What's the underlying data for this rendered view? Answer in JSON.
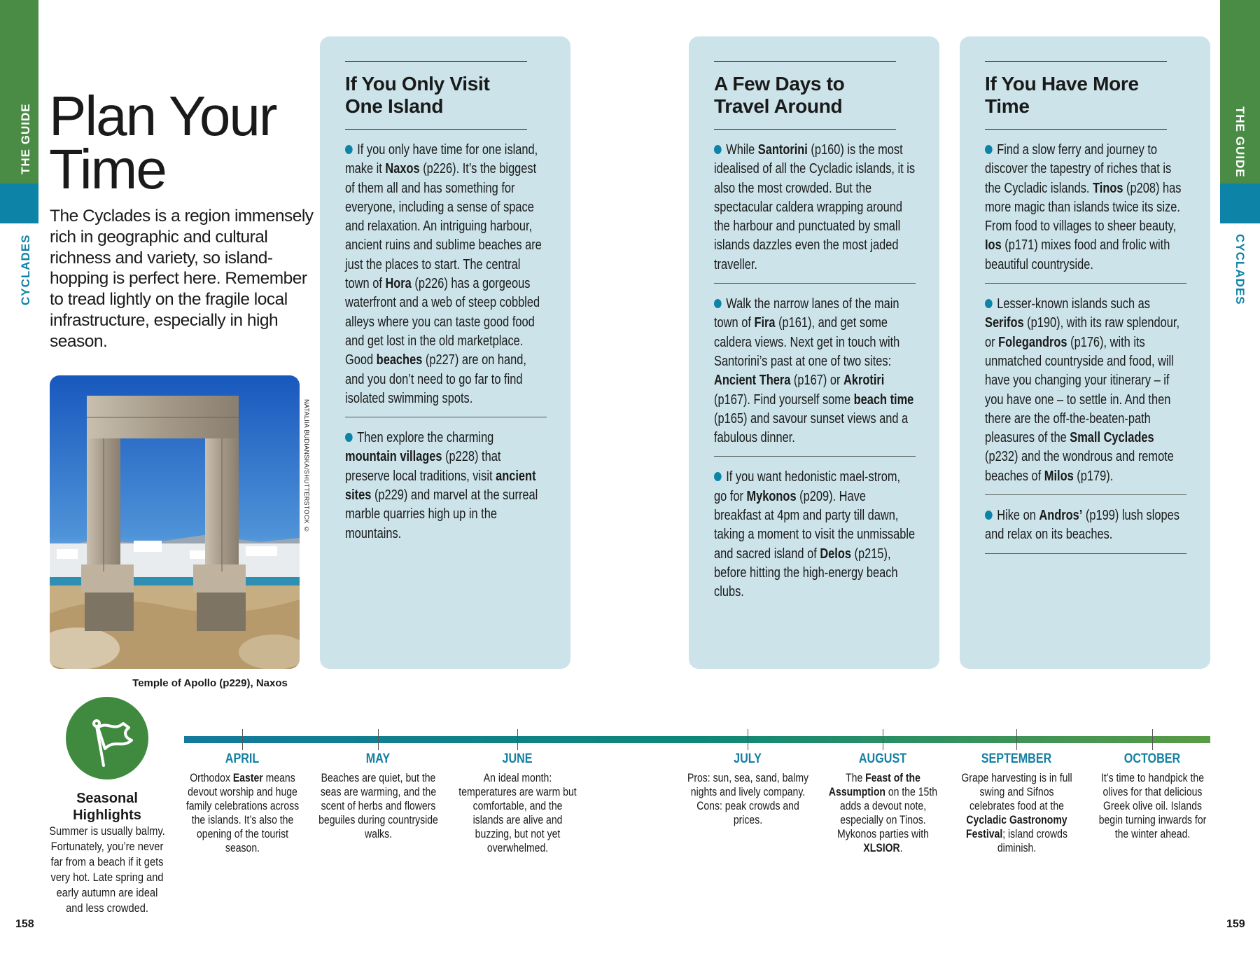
{
  "side_tabs": {
    "section": "THE GUIDE",
    "region": "CYCLADES"
  },
  "colors": {
    "green": "#4a8c45",
    "blue": "#0e83a8",
    "box_bg": "#cce3ea",
    "month": "#147fa2"
  },
  "title": "Plan Your Time",
  "intro": "The Cyclades is a region immensely rich in geographic and cultural richness and variety, so island-hopping is perfect here. Remember to tread lightly on the fragile local infrastructure, especially in high season.",
  "photo": {
    "credit": "NATALIIA BUDIANSKA/SHUTTERSTOCK ©",
    "caption": "Temple of Apollo (p229), Naxos"
  },
  "boxes": [
    {
      "heading": "If You Only Visit One Island",
      "paragraphs": [
        [
          {
            "t": "If you only have time for one island, make it "
          },
          {
            "t": "Naxos",
            "b": true
          },
          {
            "t": " (p226). It’s the biggest of them all and has something for everyone, including a sense of space and relaxation. An intriguing harbour, ancient ruins and sublime beaches are just the places to start. The central town of "
          },
          {
            "t": "Hora",
            "b": true
          },
          {
            "t": " (p226) has a gorgeous waterfront and a web of steep cobbled alleys where you can taste good food and get lost in the old marketplace. Good "
          },
          {
            "t": "beaches",
            "b": true
          },
          {
            "t": " (p227) are on hand, and you don’t need to go far to find isolated swimming spots."
          }
        ],
        [
          {
            "t": "Then explore the charming "
          },
          {
            "t": "mountain villages",
            "b": true
          },
          {
            "t": " (p228) that preserve local traditions, visit "
          },
          {
            "t": "ancient sites",
            "b": true
          },
          {
            "t": " (p229) and marvel at the surreal marble quarries high up in the mountains."
          }
        ]
      ]
    },
    {
      "heading": "A Few Days to Travel Around",
      "paragraphs": [
        [
          {
            "t": "While "
          },
          {
            "t": "Santorini",
            "b": true
          },
          {
            "t": " (p160) is the most idealised of all the Cycladic islands, it is also the most crowded. But the spectacular caldera wrapping around the harbour and punctuated by small islands dazzles even the most jaded traveller."
          }
        ],
        [
          {
            "t": "Walk the narrow lanes of the main town of "
          },
          {
            "t": "Fira",
            "b": true
          },
          {
            "t": " (p161), and get some caldera views. Next get in touch with Santorini’s past at one of two sites: "
          },
          {
            "t": "Ancient Thera",
            "b": true
          },
          {
            "t": " (p167) or "
          },
          {
            "t": "Akrotiri",
            "b": true
          },
          {
            "t": " (p167). Find yourself some "
          },
          {
            "t": "beach time",
            "b": true
          },
          {
            "t": " (p165) and savour sunset views and a fabulous dinner."
          }
        ],
        [
          {
            "t": "If you want hedonistic mael-strom, go for "
          },
          {
            "t": "Mykonos",
            "b": true
          },
          {
            "t": " (p209). Have breakfast at 4pm and party till dawn, taking a moment to visit the unmissable and sacred island of "
          },
          {
            "t": "Delos",
            "b": true
          },
          {
            "t": " (p215), before hitting the high-energy beach clubs."
          }
        ]
      ]
    },
    {
      "heading": "If You Have More Time",
      "paragraphs": [
        [
          {
            "t": "Find a slow ferry and journey to discover the tapestry of riches that is the Cycladic islands. "
          },
          {
            "t": "Tinos",
            "b": true
          },
          {
            "t": " (p208) has more magic than islands twice its size. From food to villages to sheer beauty, "
          },
          {
            "t": "Ios",
            "b": true
          },
          {
            "t": " (p171) mixes food and frolic with beautiful countryside."
          }
        ],
        [
          {
            "t": "Lesser-known islands such as "
          },
          {
            "t": "Serifos",
            "b": true
          },
          {
            "t": " (p190), with its raw splendour, or "
          },
          {
            "t": "Folegandros",
            "b": true
          },
          {
            "t": " (p176), with its unmatched countryside and food, will have you changing your itinerary – if you have one – to settle in. And then there are the off-the-beaten-path pleasures of the "
          },
          {
            "t": "Small Cyclades",
            "b": true
          },
          {
            "t": " (p232) and the wondrous and remote beaches of "
          },
          {
            "t": "Milos",
            "b": true
          },
          {
            "t": " (p179)."
          }
        ],
        [
          {
            "t": "Hike on "
          },
          {
            "t": "Andros’",
            "b": true
          },
          {
            "t": " (p199) lush slopes and relax on its beaches."
          }
        ]
      ]
    }
  ],
  "seasonal": {
    "icon": "flag-icon",
    "heading": "Seasonal Highlights",
    "text": "Summer is usually balmy. Fortunately, you’re never far from a beach if it gets very hot. Late spring and early autumn are ideal and less crowded."
  },
  "months": [
    {
      "label": "APRIL",
      "text": [
        {
          "t": "Orthodox "
        },
        {
          "t": "Easter",
          "b": true
        },
        {
          "t": " means devout worship and huge family celebrations across the islands. It’s also the opening of the tourist season."
        }
      ]
    },
    {
      "label": "MAY",
      "text": [
        {
          "t": "Beaches are quiet, but the seas are warming, and the scent of herbs and flowers beguiles during countryside walks."
        }
      ]
    },
    {
      "label": "JUNE",
      "text": [
        {
          "t": "An ideal month: temperatures are warm but comfortable, and the islands are alive and buzzing, but not yet overwhelmed."
        }
      ]
    },
    {
      "label": "JULY",
      "text": [
        {
          "t": "Pros: sun, sea, sand, balmy nights and lively company. Cons: peak crowds and prices."
        }
      ]
    },
    {
      "label": "AUGUST",
      "text": [
        {
          "t": "The "
        },
        {
          "t": "Feast of the Assumption",
          "b": true
        },
        {
          "t": " on the 15th adds a devout note, especially on Tinos. Mykonos parties with "
        },
        {
          "t": "XLSIOR",
          "b": true
        },
        {
          "t": "."
        }
      ]
    },
    {
      "label": "SEPTEMBER",
      "text": [
        {
          "t": "Grape harvesting is in full swing and Sifnos celebrates food at the "
        },
        {
          "t": "Cycladic Gastronomy Festival",
          "b": true
        },
        {
          "t": "; island crowds diminish."
        }
      ]
    },
    {
      "label": "OCTOBER",
      "text": [
        {
          "t": "It’s time to handpick the olives for that delicious Greek olive oil. Islands begin turning inwards for the winter ahead."
        }
      ]
    }
  ],
  "page_numbers": {
    "left": "158",
    "right": "159"
  }
}
